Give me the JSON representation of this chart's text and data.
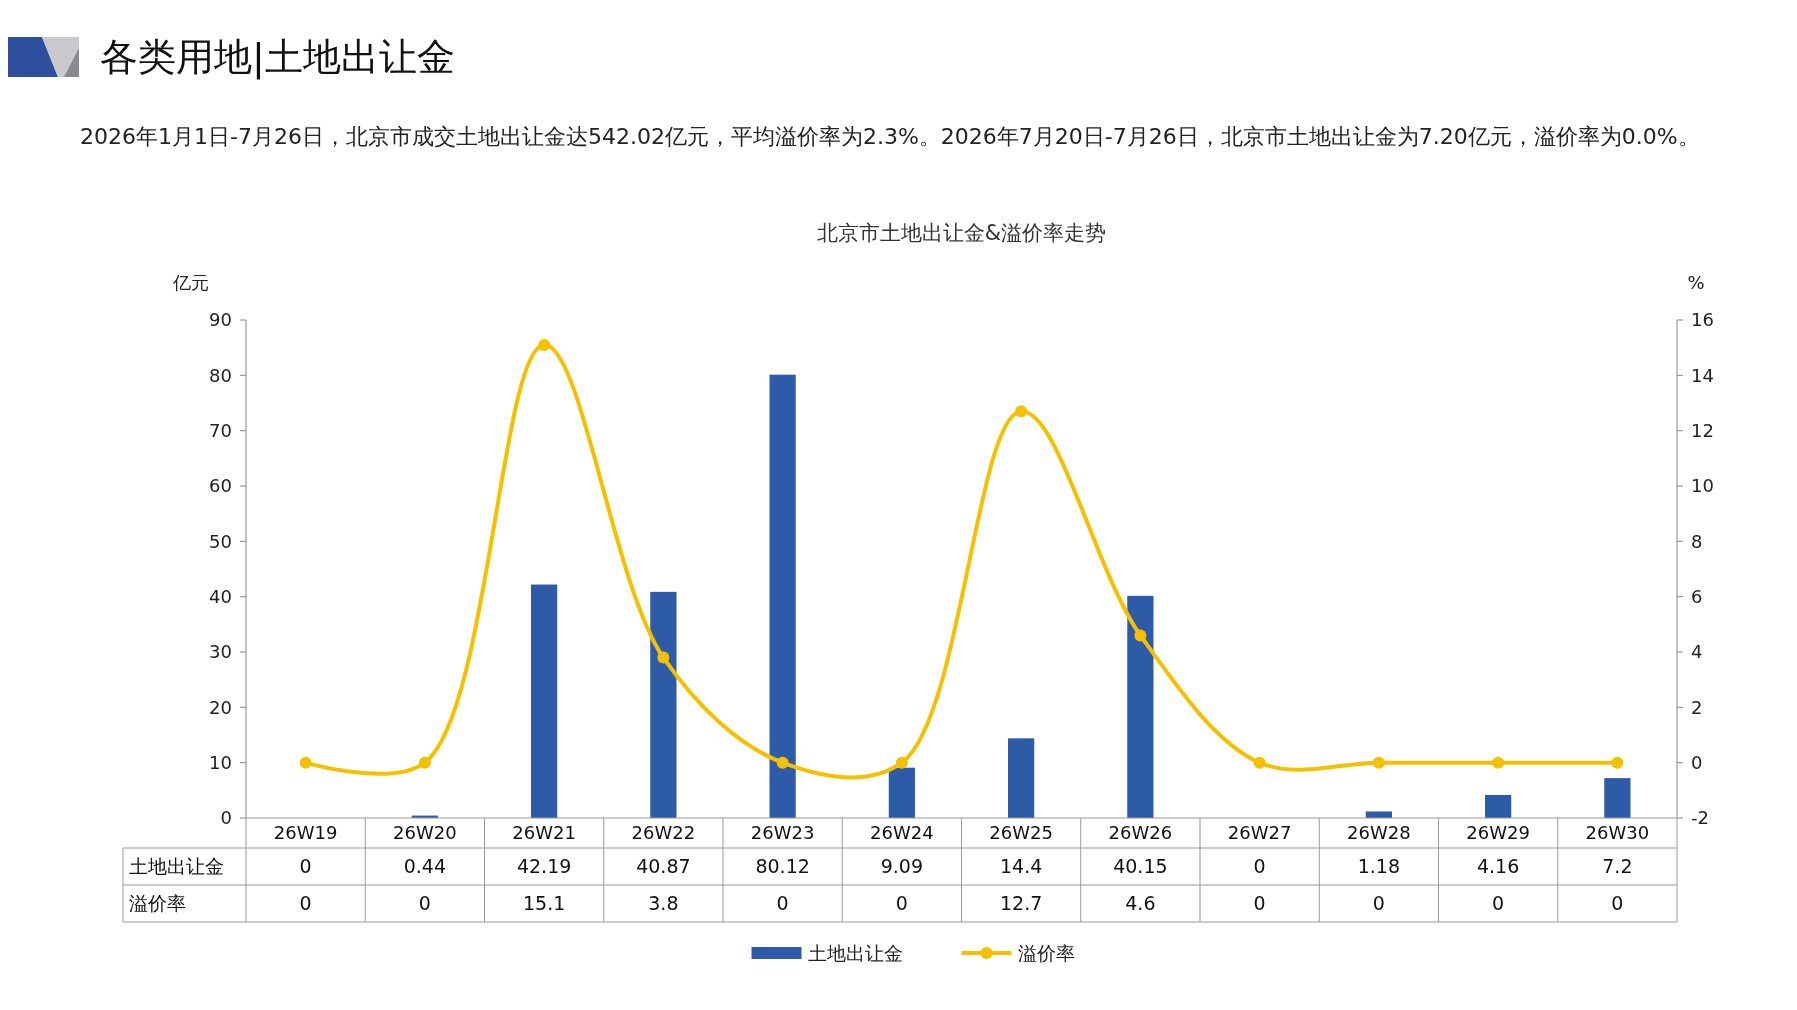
{
  "chart_data": {
    "type": "bar",
    "title": "各类用地|土地出让金",
    "subtitle": "2026年1月1日-7月26日，北京市成交土地出让金达542.02亿元，平均溢价率为2.3%。2026年7月20日-7月26日，北京市土地出让金为7.20亿元，溢价率为0.0%。",
    "annotations": [
      "北京市土地出让金&溢价率走势"
    ],
    "ylabel": "亿元",
    "y2label": "%",
    "categories": [
      "26W19",
      "26W20",
      "26W21",
      "26W22",
      "26W23",
      "26W24",
      "26W25",
      "26W26",
      "26W27",
      "26W28",
      "26W29",
      "26W30"
    ],
    "series": [
      {
        "name": "土地出让金",
        "color": "#2e5ba8",
        "values": [
          0,
          0.44,
          42.19,
          40.87,
          80.12,
          9.09,
          14.4,
          40.15,
          0,
          1.18,
          4.16,
          7.2
        ]
      },
      {
        "name": "溢价率",
        "type": "line",
        "axis": "y2",
        "color": "#f5c000",
        "values": [
          0,
          0,
          15.1,
          3.8,
          0,
          0,
          12.7,
          4.6,
          0,
          0,
          0,
          0
        ]
      }
    ],
    "ylim": [
      0,
      90
    ],
    "yticks": [
      0,
      10,
      20,
      30,
      40,
      50,
      60,
      70,
      80,
      90
    ],
    "y2lim": [
      -2,
      16
    ],
    "y2ticks": [
      -2,
      0,
      2,
      4,
      6,
      8,
      10,
      12,
      14,
      16
    ],
    "data_labels": true,
    "legend": "bottom",
    "marker": "circle",
    "line_style": "solid",
    "grid": false
  }
}
